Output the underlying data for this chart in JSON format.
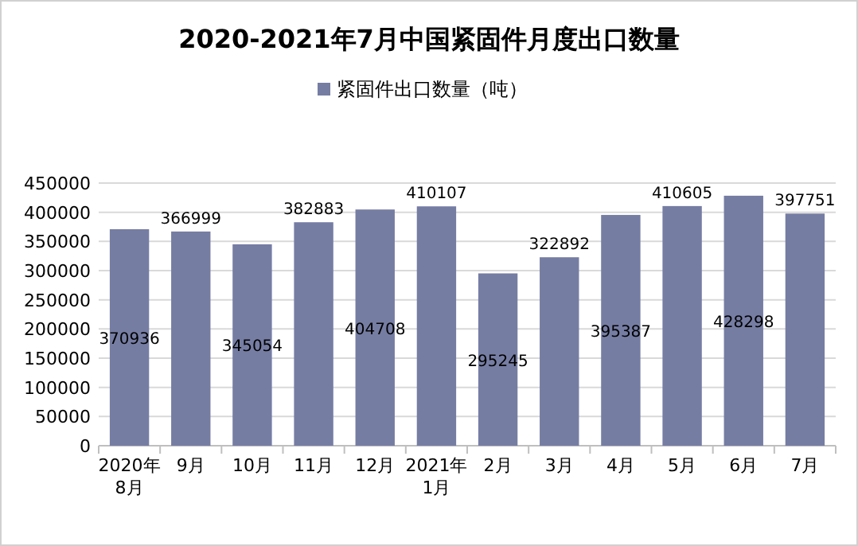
{
  "chart_data": {
    "type": "bar",
    "title": "2020-2021年7月中国紧固件月度出口数量",
    "categories": [
      "2020年\n8月",
      "9月",
      "10月",
      "11月",
      "12月",
      "2021年\n1月",
      "2月",
      "3月",
      "4月",
      "5月",
      "6月",
      "7月"
    ],
    "series": [
      {
        "name": "紧固件出口数量（吨）",
        "color": "#767da3",
        "values": [
          370936,
          366999,
          345054,
          382883,
          404708,
          410107,
          295245,
          322892,
          395387,
          410605,
          428298,
          397751
        ]
      }
    ],
    "ylim": [
      0,
      450000
    ],
    "yticks": [
      0,
      50000,
      100000,
      150000,
      200000,
      250000,
      300000,
      350000,
      400000,
      450000
    ],
    "grid": "y",
    "legend": "top",
    "data_labels": true
  }
}
